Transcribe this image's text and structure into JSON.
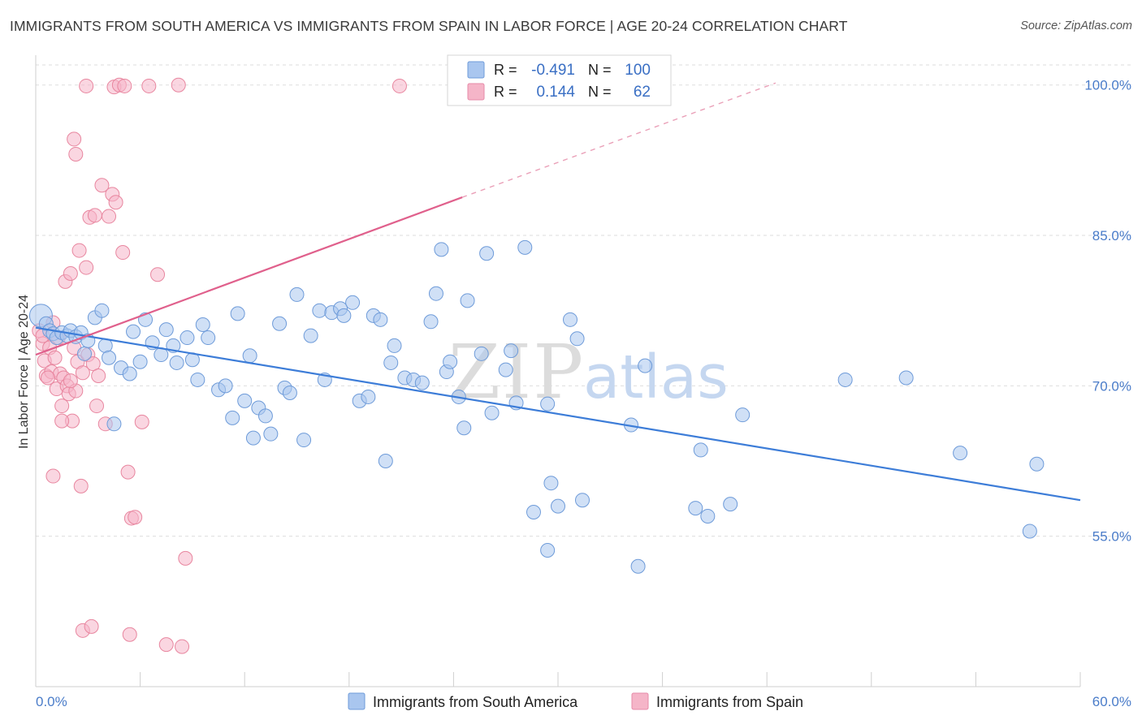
{
  "title": "IMMIGRANTS FROM SOUTH AMERICA VS IMMIGRANTS FROM SPAIN IN LABOR FORCE | AGE 20-24 CORRELATION CHART",
  "source": "Source: ZipAtlas.com",
  "watermark": {
    "part1": "ZIP",
    "part2": "atlas"
  },
  "colors": {
    "blue": "#3d7dd8",
    "blue_fill": "#a9c6ef",
    "pink": "#e0608c",
    "pink_fill": "#f5b5c8",
    "grid": "#dedede",
    "tick_text": "#4a7cc9"
  },
  "chart_data": {
    "type": "scatter",
    "xlabel": "",
    "ylabel": "In Labor Force | Age 20-24",
    "xlim": [
      0,
      60
    ],
    "ylim": [
      40,
      102
    ],
    "x_tick_labels": [
      "0.0%",
      "60.0%"
    ],
    "y_ticks": [
      55,
      70,
      85,
      100
    ],
    "y_tick_labels": [
      "55.0%",
      "70.0%",
      "85.0%",
      "100.0%"
    ],
    "legend": {
      "stats": [
        {
          "r_label": "R =",
          "r": "-0.491",
          "n_label": "N =",
          "n": "100"
        },
        {
          "r_label": "R =",
          "r": "0.144",
          "n_label": "N =",
          "n": "62"
        }
      ]
    },
    "series": [
      {
        "name": "Immigrants from South America",
        "color": "#3d7dd8",
        "trend": {
          "x0": 0,
          "y0": 75.8,
          "x1": 60,
          "y1": 58.6
        },
        "points": [
          [
            0.3,
            77.0
          ],
          [
            0.6,
            76.2
          ],
          [
            0.8,
            75.5
          ],
          [
            1.0,
            75.2
          ],
          [
            1.2,
            74.8
          ],
          [
            1.5,
            75.3
          ],
          [
            1.8,
            75.0
          ],
          [
            2.0,
            75.5
          ],
          [
            2.3,
            74.9
          ],
          [
            2.6,
            75.3
          ],
          [
            2.8,
            73.2
          ],
          [
            3.0,
            74.5
          ],
          [
            3.4,
            76.8
          ],
          [
            3.8,
            77.5
          ],
          [
            4.0,
            74.0
          ],
          [
            4.2,
            72.8
          ],
          [
            4.5,
            66.2
          ],
          [
            4.9,
            71.8
          ],
          [
            5.4,
            71.2
          ],
          [
            5.6,
            75.4
          ],
          [
            6.0,
            72.4
          ],
          [
            6.3,
            76.6
          ],
          [
            6.7,
            74.3
          ],
          [
            7.2,
            73.1
          ],
          [
            7.5,
            75.6
          ],
          [
            7.9,
            74.0
          ],
          [
            8.1,
            72.3
          ],
          [
            8.7,
            74.8
          ],
          [
            9.0,
            72.6
          ],
          [
            9.3,
            70.6
          ],
          [
            9.6,
            76.1
          ],
          [
            9.9,
            74.8
          ],
          [
            10.5,
            69.6
          ],
          [
            10.9,
            70.0
          ],
          [
            11.3,
            66.8
          ],
          [
            11.6,
            77.2
          ],
          [
            12.0,
            68.5
          ],
          [
            12.3,
            73.0
          ],
          [
            12.8,
            67.8
          ],
          [
            13.2,
            67.0
          ],
          [
            13.5,
            65.2
          ],
          [
            14.0,
            76.2
          ],
          [
            14.3,
            69.8
          ],
          [
            14.6,
            69.3
          ],
          [
            15.0,
            79.1
          ],
          [
            15.4,
            64.6
          ],
          [
            15.8,
            75.0
          ],
          [
            16.3,
            77.5
          ],
          [
            16.6,
            70.6
          ],
          [
            17.0,
            77.3
          ],
          [
            17.5,
            77.7
          ],
          [
            18.2,
            78.3
          ],
          [
            18.6,
            68.5
          ],
          [
            19.1,
            68.9
          ],
          [
            19.4,
            77.0
          ],
          [
            19.8,
            76.6
          ],
          [
            20.1,
            62.5
          ],
          [
            20.4,
            72.3
          ],
          [
            20.6,
            74.0
          ],
          [
            21.2,
            70.8
          ],
          [
            21.7,
            70.6
          ],
          [
            22.2,
            70.3
          ],
          [
            22.7,
            76.4
          ],
          [
            23.0,
            79.2
          ],
          [
            23.3,
            83.6
          ],
          [
            23.6,
            71.4
          ],
          [
            23.8,
            72.4
          ],
          [
            24.3,
            68.9
          ],
          [
            24.6,
            65.8
          ],
          [
            24.8,
            78.5
          ],
          [
            25.6,
            73.2
          ],
          [
            25.9,
            83.2
          ],
          [
            26.2,
            67.3
          ],
          [
            27.0,
            71.6
          ],
          [
            27.3,
            73.5
          ],
          [
            27.6,
            68.3
          ],
          [
            28.1,
            83.8
          ],
          [
            28.6,
            57.4
          ],
          [
            29.4,
            53.6
          ],
          [
            29.6,
            60.3
          ],
          [
            30.0,
            58.0
          ],
          [
            30.7,
            76.6
          ],
          [
            31.1,
            74.7
          ],
          [
            31.4,
            58.6
          ],
          [
            34.2,
            66.1
          ],
          [
            34.6,
            52.0
          ],
          [
            35.0,
            72.0
          ],
          [
            37.9,
            57.8
          ],
          [
            38.2,
            63.6
          ],
          [
            38.6,
            57.0
          ],
          [
            39.9,
            58.2
          ],
          [
            40.6,
            67.1
          ],
          [
            46.5,
            70.6
          ],
          [
            50.0,
            70.8
          ],
          [
            53.1,
            63.3
          ],
          [
            57.1,
            55.5
          ],
          [
            57.5,
            62.2
          ],
          [
            29.4,
            68.2
          ],
          [
            17.7,
            77.0
          ],
          [
            12.5,
            64.8
          ]
        ]
      },
      {
        "name": "Immigrants from Spain",
        "color": "#e0608c",
        "trend": {
          "x0": 0,
          "y0": 73.1,
          "x1": 24.5,
          "y1": 88.8
        },
        "trend_dashed": {
          "x0": 24.5,
          "y0": 88.8,
          "x1": 42.5,
          "y1": 100.2
        },
        "points": [
          [
            0.2,
            75.5
          ],
          [
            0.4,
            74.2
          ],
          [
            0.5,
            72.5
          ],
          [
            0.6,
            71.0
          ],
          [
            0.8,
            73.8
          ],
          [
            0.9,
            71.4
          ],
          [
            1.0,
            76.3
          ],
          [
            1.1,
            72.8
          ],
          [
            1.2,
            69.7
          ],
          [
            1.3,
            74.8
          ],
          [
            1.4,
            71.2
          ],
          [
            1.5,
            68.0
          ],
          [
            1.6,
            70.8
          ],
          [
            1.7,
            80.4
          ],
          [
            1.8,
            70.0
          ],
          [
            1.9,
            69.2
          ],
          [
            2.0,
            81.2
          ],
          [
            2.1,
            66.5
          ],
          [
            2.2,
            73.8
          ],
          [
            2.3,
            69.5
          ],
          [
            2.4,
            72.4
          ],
          [
            2.5,
            83.5
          ],
          [
            2.6,
            60.0
          ],
          [
            2.7,
            71.3
          ],
          [
            2.9,
            81.8
          ],
          [
            3.0,
            73.1
          ],
          [
            3.1,
            86.8
          ],
          [
            3.3,
            72.2
          ],
          [
            3.4,
            87.0
          ],
          [
            3.6,
            71.0
          ],
          [
            3.8,
            90.0
          ],
          [
            4.0,
            66.2
          ],
          [
            4.2,
            86.9
          ],
          [
            4.4,
            89.1
          ],
          [
            4.6,
            88.3
          ],
          [
            5.0,
            83.3
          ],
          [
            5.3,
            61.4
          ],
          [
            5.4,
            45.2
          ],
          [
            5.5,
            56.8
          ],
          [
            5.7,
            56.9
          ],
          [
            6.1,
            66.4
          ],
          [
            7.0,
            81.1
          ],
          [
            8.4,
            44.0
          ],
          [
            8.6,
            52.8
          ],
          [
            2.9,
            99.9
          ],
          [
            4.5,
            99.8
          ],
          [
            4.8,
            100.0
          ],
          [
            5.1,
            99.9
          ],
          [
            6.5,
            99.9
          ],
          [
            8.2,
            100.0
          ],
          [
            20.9,
            99.9
          ],
          [
            2.2,
            94.6
          ],
          [
            2.3,
            93.1
          ],
          [
            2.7,
            45.6
          ],
          [
            3.2,
            46.0
          ],
          [
            1.0,
            61.0
          ],
          [
            0.7,
            70.8
          ],
          [
            1.5,
            66.5
          ],
          [
            0.4,
            75.0
          ],
          [
            2.0,
            70.5
          ],
          [
            3.5,
            68.0
          ],
          [
            7.5,
            44.2
          ]
        ]
      }
    ]
  },
  "legend_bottom": {
    "items": [
      "Immigrants from South America",
      "Immigrants from Spain"
    ]
  }
}
